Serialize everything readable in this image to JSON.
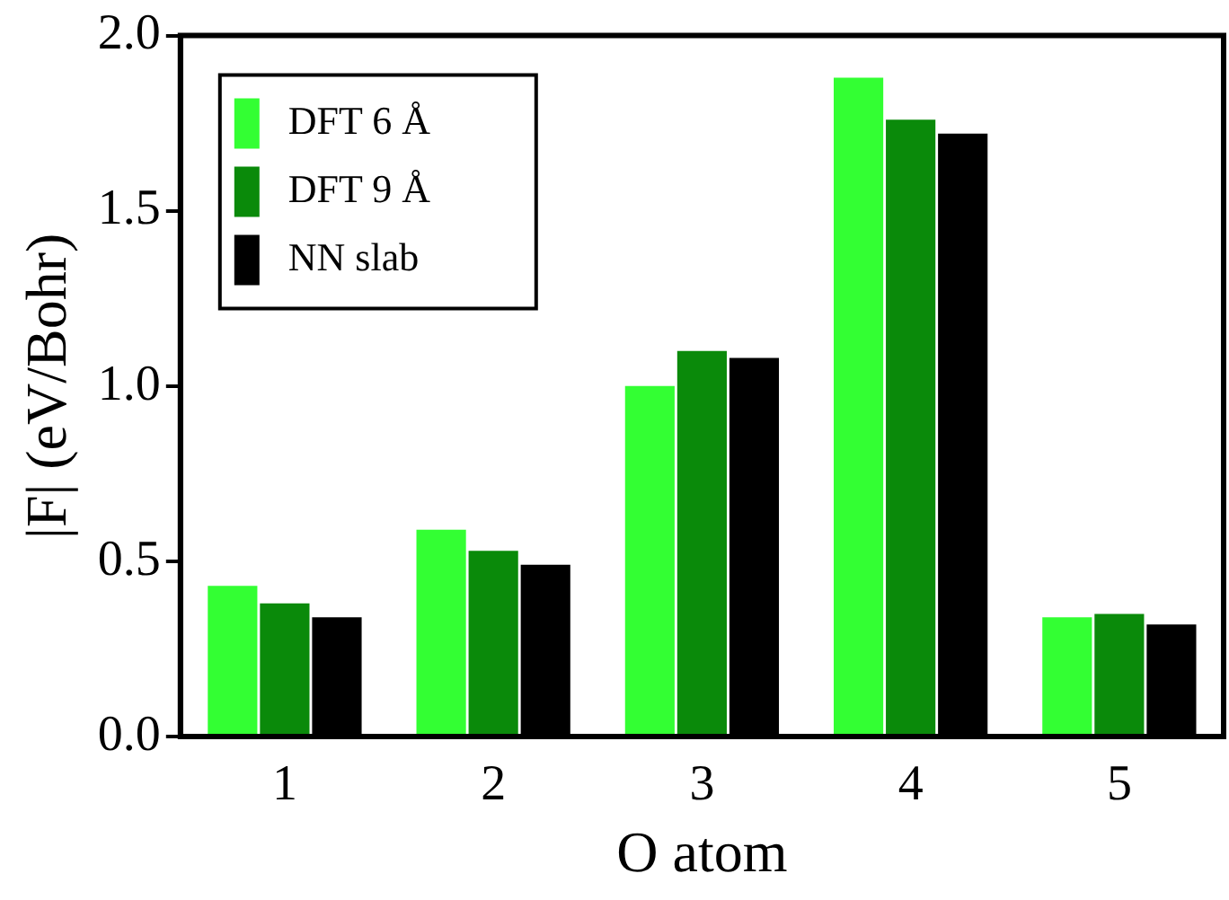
{
  "chart_data": {
    "type": "bar",
    "xlabel": "O atom",
    "ylabel": "|F| (eV/Bohr)",
    "categories": [
      "1",
      "2",
      "3",
      "4",
      "5"
    ],
    "series": [
      {
        "name": "DFT 6 Å",
        "color": "#33ff33",
        "values": [
          0.43,
          0.59,
          1.0,
          1.88,
          0.34
        ]
      },
      {
        "name": "DFT 9 Å",
        "color": "#0a8a0a",
        "values": [
          0.38,
          0.53,
          1.1,
          1.76,
          0.35
        ]
      },
      {
        "name": "NN slab",
        "color": "#000000",
        "values": [
          0.34,
          0.49,
          1.08,
          1.72,
          0.32
        ]
      }
    ],
    "ylim": [
      0,
      2.0
    ],
    "yticks": [
      {
        "value": 0,
        "label": "0.0"
      },
      {
        "value": 0.5,
        "label": "0.5"
      },
      {
        "value": 1,
        "label": "1.0"
      },
      {
        "value": 1.5,
        "label": "1.5"
      },
      {
        "value": 2,
        "label": "2.0"
      }
    ],
    "grid": false,
    "legend": "top left"
  }
}
